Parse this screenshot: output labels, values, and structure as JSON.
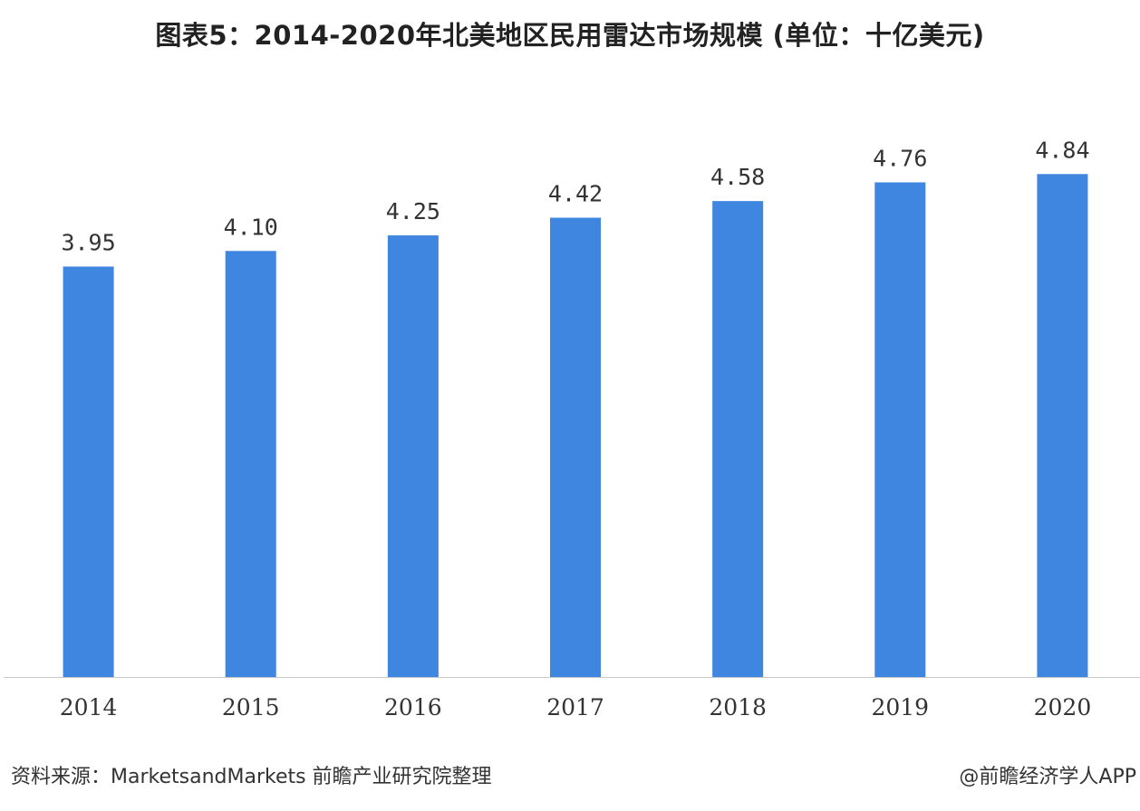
{
  "colors": {
    "bar": "#3f86e0",
    "axis": "#c8c8c8",
    "label": "#333333"
  },
  "chart_data": {
    "type": "bar",
    "title": "图表5：2014-2020年北美地区民用雷达市场规模 (单位：十亿美元)",
    "categories": [
      "2014",
      "2015",
      "2016",
      "2017",
      "2018",
      "2019",
      "2020"
    ],
    "values": [
      3.95,
      4.1,
      4.25,
      4.42,
      4.58,
      4.76,
      4.84
    ],
    "value_labels": [
      "3.95",
      "4.10",
      "4.25",
      "4.42",
      "4.58",
      "4.76",
      "4.84"
    ],
    "ylim": [
      0,
      5.4
    ],
    "grid": false,
    "legend": "none",
    "y_axis_visible": false
  },
  "footer": {
    "source": "资料来源：MarketsandMarkets 前瞻产业研究院整理",
    "credit": "@前瞻经济学人APP"
  }
}
